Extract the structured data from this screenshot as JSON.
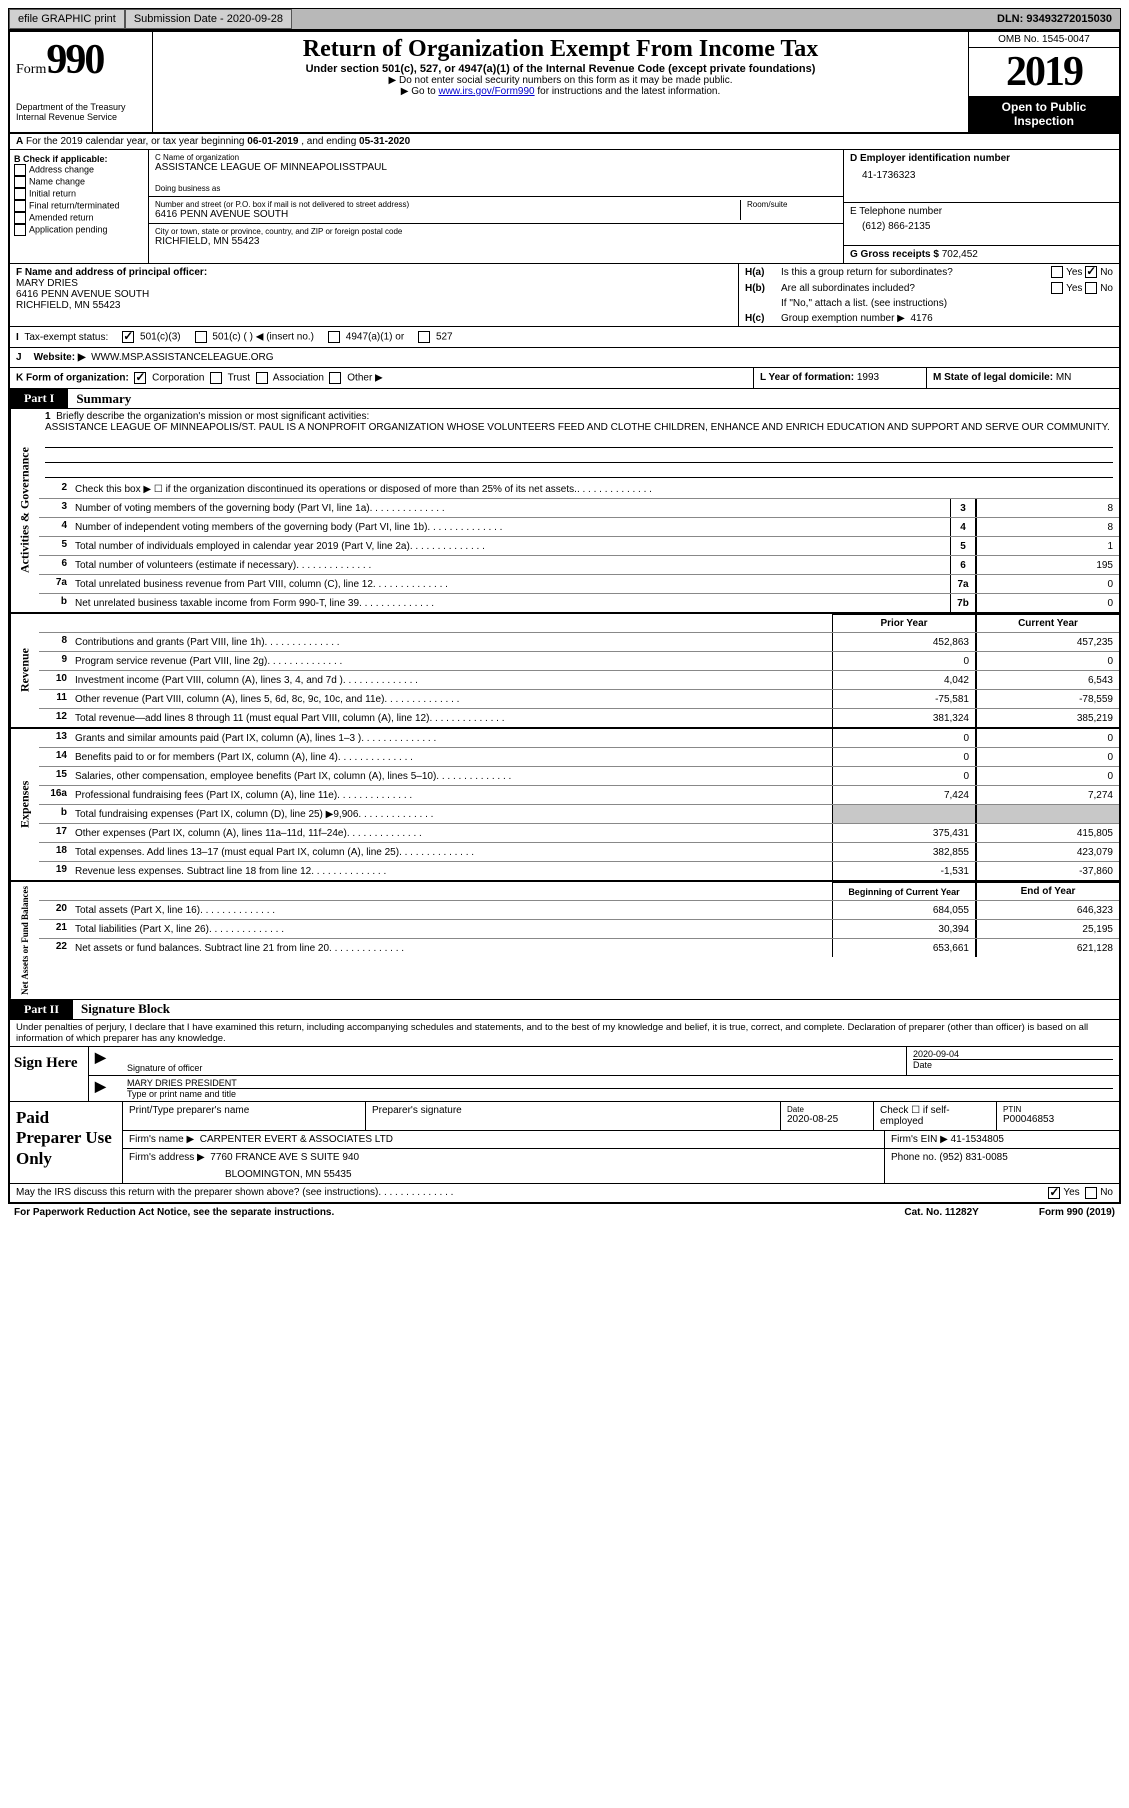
{
  "topbar": {
    "efile": "efile GRAPHIC print",
    "sub_label": "Submission Date - ",
    "sub_date": "2020-09-28",
    "dln_label": "DLN: ",
    "dln": "93493272015030"
  },
  "header": {
    "form_word": "Form",
    "form_num": "990",
    "dept": "Department of the Treasury\nInternal Revenue Service",
    "title": "Return of Organization Exempt From Income Tax",
    "subtitle": "Under section 501(c), 527, or 4947(a)(1) of the Internal Revenue Code (except private foundations)",
    "note1": "▶ Do not enter social security numbers on this form as it may be made public.",
    "note2_a": "▶ Go to ",
    "note2_link": "www.irs.gov/Form990",
    "note2_b": " for instructions and the latest information.",
    "omb": "OMB No. 1545-0047",
    "year": "2019",
    "open": "Open to Public Inspection"
  },
  "row_a": {
    "text_a": "For the 2019 calendar year, or tax year beginning ",
    "begin": "06-01-2019",
    "text_b": " , and ending ",
    "end": "05-31-2020"
  },
  "box_b": {
    "title": "B Check if applicable:",
    "items": [
      "Address change",
      "Name change",
      "Initial return",
      "Final return/terminated",
      "Amended return",
      "Application pending"
    ]
  },
  "box_c": {
    "name_lbl": "C Name of organization",
    "name": "ASSISTANCE LEAGUE OF MINNEAPOLISSTPAUL",
    "dba_lbl": "Doing business as",
    "addr_lbl": "Number and street (or P.O. box if mail is not delivered to street address)",
    "room_lbl": "Room/suite",
    "addr": "6416 PENN AVENUE SOUTH",
    "city_lbl": "City or town, state or province, country, and ZIP or foreign postal code",
    "city": "RICHFIELD, MN  55423"
  },
  "box_d": {
    "lbl": "D Employer identification number",
    "val": "41-1736323"
  },
  "box_e": {
    "lbl": "E Telephone number",
    "val": "(612) 866-2135"
  },
  "box_g": {
    "lbl": "G Gross receipts $ ",
    "val": "702,452"
  },
  "box_f": {
    "lbl": "F Name and address of principal officer:",
    "name": "MARY DRIES",
    "addr1": "6416 PENN AVENUE SOUTH",
    "addr2": "RICHFIELD, MN  55423"
  },
  "box_h": {
    "a_lbl": "H(a)",
    "a_q": "Is this a group return for subordinates?",
    "b_lbl": "H(b)",
    "b_q": "Are all subordinates included?",
    "b_note": "If \"No,\" attach a list. (see instructions)",
    "c_lbl": "H(c)",
    "c_q": "Group exemption number ▶",
    "c_val": "4176",
    "yes": "Yes",
    "no": "No"
  },
  "tax_status": {
    "lbl": "Tax-exempt status:",
    "o1": "501(c)(3)",
    "o2": "501(c) (  ) ◀ (insert no.)",
    "o3": "4947(a)(1) or",
    "o4": "527"
  },
  "row_j": {
    "lbl": "J",
    "web_lbl": "Website: ▶",
    "web": "WWW.MSP.ASSISTANCELEAGUE.ORG"
  },
  "row_k": {
    "lbl": "K Form of organization:",
    "o1": "Corporation",
    "o2": "Trust",
    "o3": "Association",
    "o4": "Other ▶",
    "l_lbl": "L Year of formation: ",
    "l_val": "1993",
    "m_lbl": "M State of legal domicile: ",
    "m_val": "MN"
  },
  "part1": {
    "num": "Part I",
    "title": "Summary"
  },
  "mission": {
    "num": "1",
    "prompt": "Briefly describe the organization's mission or most significant activities:",
    "text": "ASSISTANCE LEAGUE OF MINNEAPOLIS/ST. PAUL IS A NONPROFIT ORGANIZATION WHOSE VOLUNTEERS FEED AND CLOTHE CHILDREN, ENHANCE AND ENRICH EDUCATION AND SUPPORT AND SERVE OUR COMMUNITY."
  },
  "sections": {
    "gov": "Activities & Governance",
    "rev": "Revenue",
    "exp": "Expenses",
    "net": "Net Assets or Fund Balances"
  },
  "gov_lines": [
    {
      "n": "2",
      "t": "Check this box ▶ ☐  if the organization discontinued its operations or disposed of more than 25% of its net assets.",
      "box": "",
      "v": ""
    },
    {
      "n": "3",
      "t": "Number of voting members of the governing body (Part VI, line 1a)",
      "box": "3",
      "v": "8"
    },
    {
      "n": "4",
      "t": "Number of independent voting members of the governing body (Part VI, line 1b)",
      "box": "4",
      "v": "8"
    },
    {
      "n": "5",
      "t": "Total number of individuals employed in calendar year 2019 (Part V, line 2a)",
      "box": "5",
      "v": "1"
    },
    {
      "n": "6",
      "t": "Total number of volunteers (estimate if necessary)",
      "box": "6",
      "v": "195"
    },
    {
      "n": "7a",
      "t": "Total unrelated business revenue from Part VIII, column (C), line 12",
      "box": "7a",
      "v": "0"
    },
    {
      "n": "b",
      "t": "Net unrelated business taxable income from Form 990-T, line 39",
      "box": "7b",
      "v": "0"
    }
  ],
  "col_hdrs": {
    "prior": "Prior Year",
    "current": "Current Year"
  },
  "rev_lines": [
    {
      "n": "8",
      "t": "Contributions and grants (Part VIII, line 1h)",
      "p": "452,863",
      "c": "457,235"
    },
    {
      "n": "9",
      "t": "Program service revenue (Part VIII, line 2g)",
      "p": "0",
      "c": "0"
    },
    {
      "n": "10",
      "t": "Investment income (Part VIII, column (A), lines 3, 4, and 7d )",
      "p": "4,042",
      "c": "6,543"
    },
    {
      "n": "11",
      "t": "Other revenue (Part VIII, column (A), lines 5, 6d, 8c, 9c, 10c, and 11e)",
      "p": "-75,581",
      "c": "-78,559"
    },
    {
      "n": "12",
      "t": "Total revenue—add lines 8 through 11 (must equal Part VIII, column (A), line 12)",
      "p": "381,324",
      "c": "385,219"
    }
  ],
  "exp_lines": [
    {
      "n": "13",
      "t": "Grants and similar amounts paid (Part IX, column (A), lines 1–3 )",
      "p": "0",
      "c": "0"
    },
    {
      "n": "14",
      "t": "Benefits paid to or for members (Part IX, column (A), line 4)",
      "p": "0",
      "c": "0"
    },
    {
      "n": "15",
      "t": "Salaries, other compensation, employee benefits (Part IX, column (A), lines 5–10)",
      "p": "0",
      "c": "0"
    },
    {
      "n": "16a",
      "t": "Professional fundraising fees (Part IX, column (A), line 11e)",
      "p": "7,424",
      "c": "7,274"
    },
    {
      "n": "b",
      "t": "Total fundraising expenses (Part IX, column (D), line 25) ▶9,906",
      "p": "",
      "c": "",
      "shade": true
    },
    {
      "n": "17",
      "t": "Other expenses (Part IX, column (A), lines 11a–11d, 11f–24e)",
      "p": "375,431",
      "c": "415,805"
    },
    {
      "n": "18",
      "t": "Total expenses. Add lines 13–17 (must equal Part IX, column (A), line 25)",
      "p": "382,855",
      "c": "423,079"
    },
    {
      "n": "19",
      "t": "Revenue less expenses. Subtract line 18 from line 12",
      "p": "-1,531",
      "c": "-37,860"
    }
  ],
  "net_hdrs": {
    "begin": "Beginning of Current Year",
    "end": "End of Year"
  },
  "net_lines": [
    {
      "n": "20",
      "t": "Total assets (Part X, line 16)",
      "p": "684,055",
      "c": "646,323"
    },
    {
      "n": "21",
      "t": "Total liabilities (Part X, line 26)",
      "p": "30,394",
      "c": "25,195"
    },
    {
      "n": "22",
      "t": "Net assets or fund balances. Subtract line 21 from line 20",
      "p": "653,661",
      "c": "621,128"
    }
  ],
  "part2": {
    "num": "Part II",
    "title": "Signature Block"
  },
  "sig": {
    "decl": "Under penalties of perjury, I declare that I have examined this return, including accompanying schedules and statements, and to the best of my knowledge and belief, it is true, correct, and complete. Declaration of preparer (other than officer) is based on all information of which preparer has any knowledge.",
    "sign_here": "Sign Here",
    "sig_officer_lbl": "Signature of officer",
    "date_lbl": "Date",
    "date": "2020-09-04",
    "name": "MARY DRIES  PRESIDENT",
    "name_lbl": "Type or print name and title"
  },
  "prep": {
    "title": "Paid Preparer Use Only",
    "c1": "Print/Type preparer's name",
    "c2": "Preparer's signature",
    "c3_lbl": "Date",
    "c3": "2020-08-25",
    "c4_lbl": "Check ☐ if self-employed",
    "c5_lbl": "PTIN",
    "c5": "P00046853",
    "firm_name_lbl": "Firm's name    ▶",
    "firm_name": "CARPENTER EVERT & ASSOCIATES LTD",
    "firm_ein_lbl": "Firm's EIN ▶",
    "firm_ein": "41-1534805",
    "firm_addr_lbl": "Firm's address ▶",
    "firm_addr1": "7760 FRANCE AVE S SUITE 940",
    "firm_addr2": "BLOOMINGTON, MN  55435",
    "phone_lbl": "Phone no. ",
    "phone": "(952) 831-0085"
  },
  "discuss": {
    "q": "May the IRS discuss this return with the preparer shown above? (see instructions)",
    "yes": "Yes",
    "no": "No"
  },
  "footer": {
    "pra": "For Paperwork Reduction Act Notice, see the separate instructions.",
    "cat": "Cat. No. 11282Y",
    "form": "Form 990 (2019)"
  }
}
